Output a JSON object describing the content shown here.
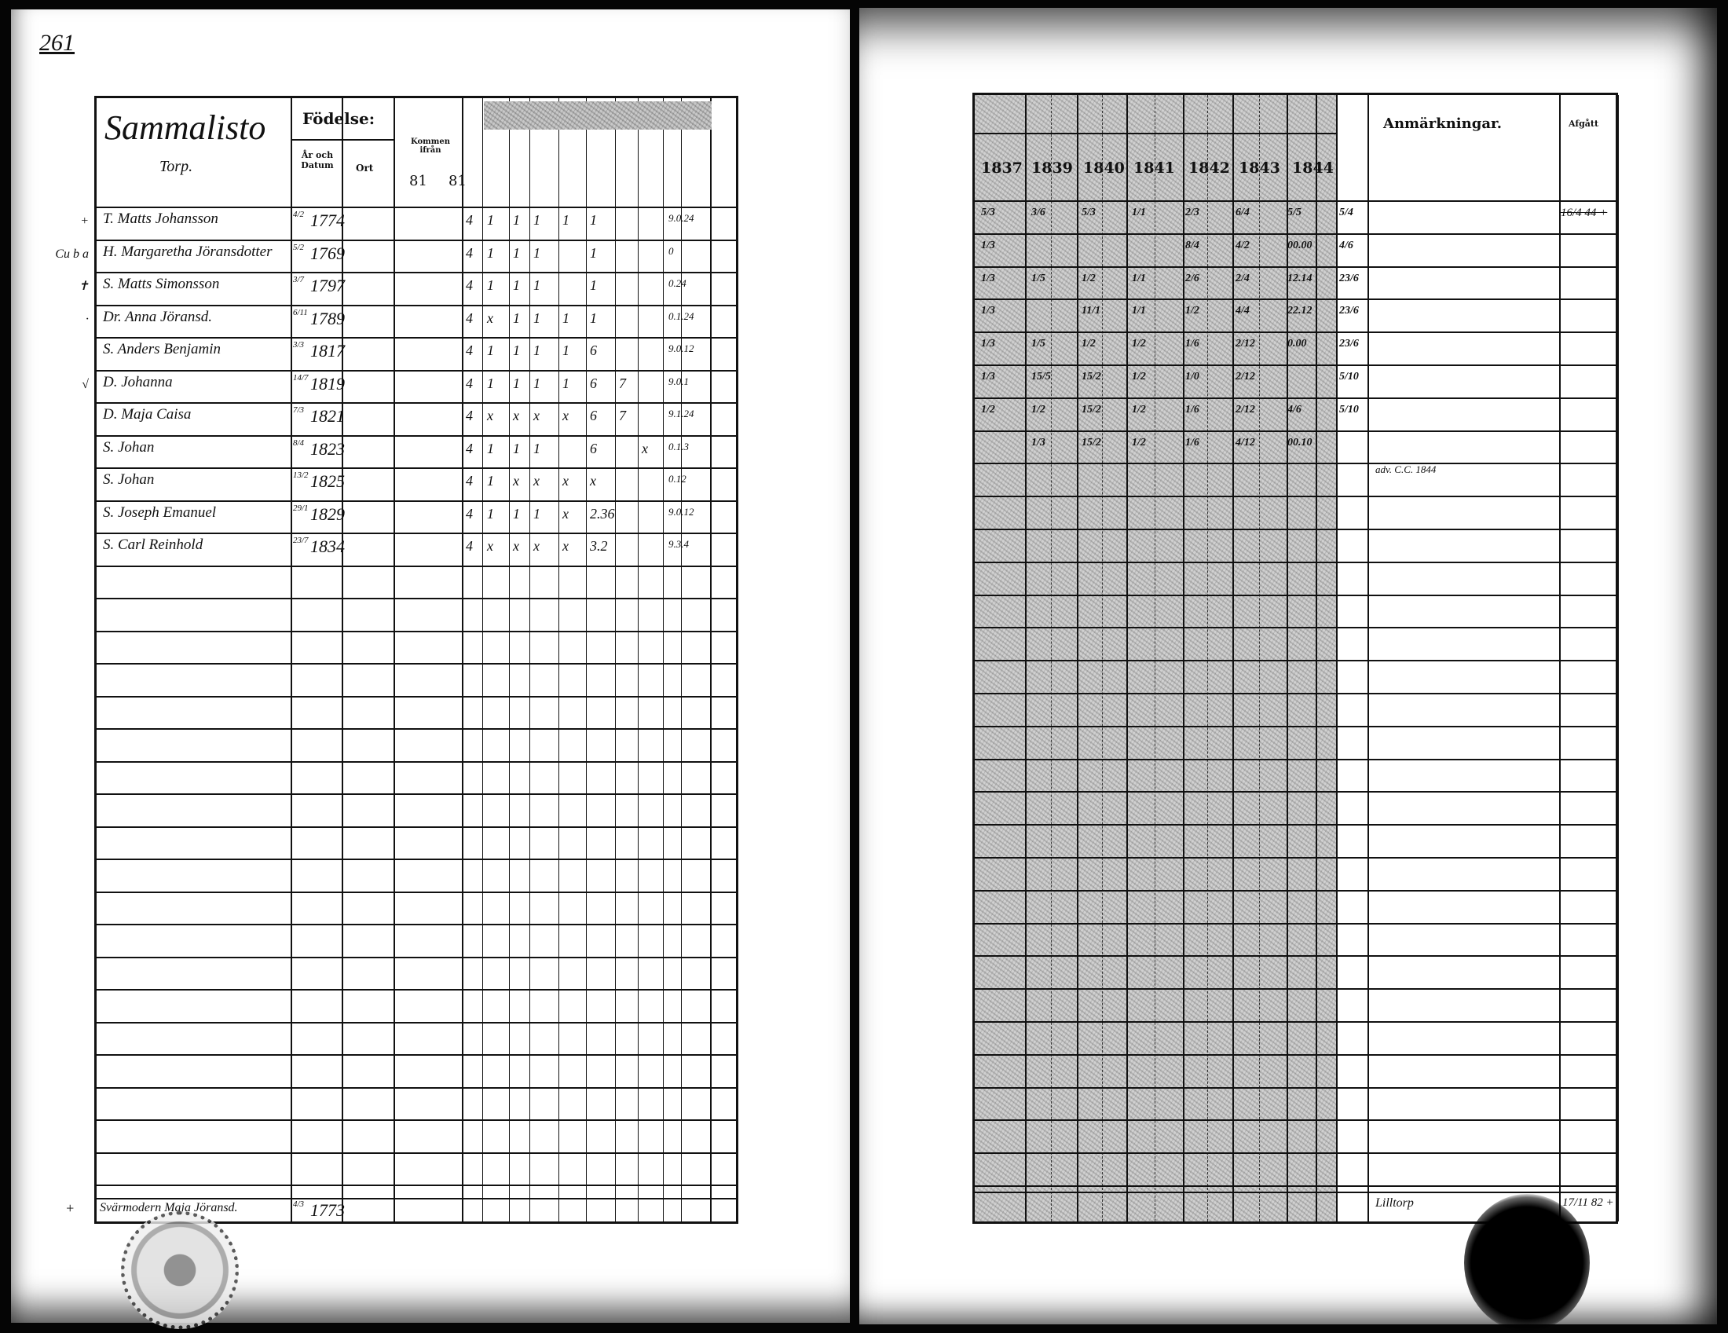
{
  "page_number": "261",
  "left": {
    "title": "Sammalisto",
    "subtitle": "Torp.",
    "header_birth": "Födelse:",
    "header_date": "År och Datum",
    "header_place": "Ort",
    "header_from": "Kommen ifrån",
    "header_81a": "81",
    "header_81b": "81",
    "rows": [
      {
        "margin": "+",
        "name": "T. Matts Johansson",
        "day": "4/2",
        "year": "1774",
        "marks": [
          "4",
          "1",
          "1",
          "1",
          "1",
          "1",
          "",
          "",
          "9.0.24"
        ]
      },
      {
        "margin": "Cu b a",
        "name": "H. Margaretha Jöransdotter",
        "day": "5/2",
        "year": "1769",
        "marks": [
          "4",
          "1",
          "1",
          "1",
          "",
          "1",
          "",
          "",
          "0"
        ]
      },
      {
        "margin": "✝",
        "name": "S. Matts Simonsson",
        "day": "3/7",
        "year": "1797",
        "marks": [
          "4",
          "1",
          "1",
          "1",
          "",
          "1",
          "",
          "",
          "0.24"
        ]
      },
      {
        "margin": "·",
        "name": "Dr. Anna Jöransd.",
        "day": "6/11",
        "year": "1789",
        "marks": [
          "4",
          "x",
          "1",
          "1",
          "1",
          "1",
          "",
          "",
          "0.1.24"
        ]
      },
      {
        "margin": "",
        "name": "S. Anders Benjamin",
        "day": "3/3",
        "year": "1817",
        "marks": [
          "4",
          "1",
          "1",
          "1",
          "1",
          "6",
          "",
          "",
          "9.0.12"
        ]
      },
      {
        "margin": "√",
        "name": "D. Johanna",
        "day": "14/7",
        "year": "1819",
        "marks": [
          "4",
          "1",
          "1",
          "1",
          "1",
          "6",
          "7",
          "",
          "9.0.1"
        ]
      },
      {
        "margin": "",
        "name": "D. Maja Caisa",
        "day": "7/3",
        "year": "1821",
        "marks": [
          "4",
          "x",
          "x",
          "x",
          "x",
          "6",
          "7",
          "",
          "9.1.24"
        ]
      },
      {
        "margin": "",
        "name": "S. Johan",
        "day": "8/4",
        "year": "1823",
        "marks": [
          "4",
          "1",
          "1",
          "1",
          "",
          "6",
          "",
          "x",
          "0.1.3"
        ]
      },
      {
        "margin": "",
        "name": "S. Johan",
        "day": "13/2",
        "year": "1825",
        "marks": [
          "4",
          "1",
          "x",
          "x",
          "x",
          "x",
          "",
          "",
          "0.12"
        ]
      },
      {
        "margin": "",
        "name": "S. Joseph Emanuel",
        "day": "29/1",
        "year": "1829",
        "marks": [
          "4",
          "1",
          "1",
          "1",
          "x",
          "2.36",
          "",
          "",
          "9.0.12"
        ]
      },
      {
        "margin": "",
        "name": "S. Carl Reinhold",
        "day": "23/7",
        "year": "1834",
        "marks": [
          "4",
          "x",
          "x",
          "x",
          "x",
          "3.2",
          "",
          "",
          "9.3.4"
        ]
      }
    ],
    "last_row": {
      "margin": "+",
      "name": "Svärmodern Maja Jöransd.",
      "day": "4/3",
      "year": "1773"
    }
  },
  "right": {
    "year_headers": [
      "1837",
      "1839",
      "1840",
      "1841",
      "1842",
      "1843",
      "1844"
    ],
    "header_remarks": "Anmärkningar.",
    "header_departed": "Afgått",
    "rows": [
      [
        "5/3",
        "3/6",
        "5/3",
        "1/1",
        "2/3",
        "6/4",
        "5/5",
        "5/4"
      ],
      [
        "1/3",
        "",
        "",
        "",
        "8/4",
        "4/2",
        "00.00",
        "4/6"
      ],
      [
        "1/3",
        "1/5",
        "1/2",
        "1/1",
        "2/6",
        "2/4",
        "12.14",
        "23/6"
      ],
      [
        "1/3",
        "",
        "11/1",
        "1/1",
        "1/2",
        "4/4",
        "22.12",
        "23/6"
      ],
      [
        "1/3",
        "1/5",
        "1/2",
        "1/2",
        "1/6",
        "2/12",
        "0.00",
        "23/6"
      ],
      [
        "1/3",
        "15/5",
        "15/2",
        "1/2",
        "1/0",
        "2/12",
        "",
        "5/10"
      ],
      [
        "1/2",
        "1/2",
        "15/2",
        "1/2",
        "1/6",
        "2/12",
        "4/6",
        "5/10"
      ],
      [
        "",
        "1/3",
        "15/2",
        "1/2",
        "1/6",
        "4/12",
        "00.10",
        ""
      ]
    ],
    "departed_first": "16/4 44 +",
    "remark_note": "adv. C.C. 1844",
    "bottom_remark": "Lilltorp",
    "bottom_departed": "17/11 82 +"
  }
}
